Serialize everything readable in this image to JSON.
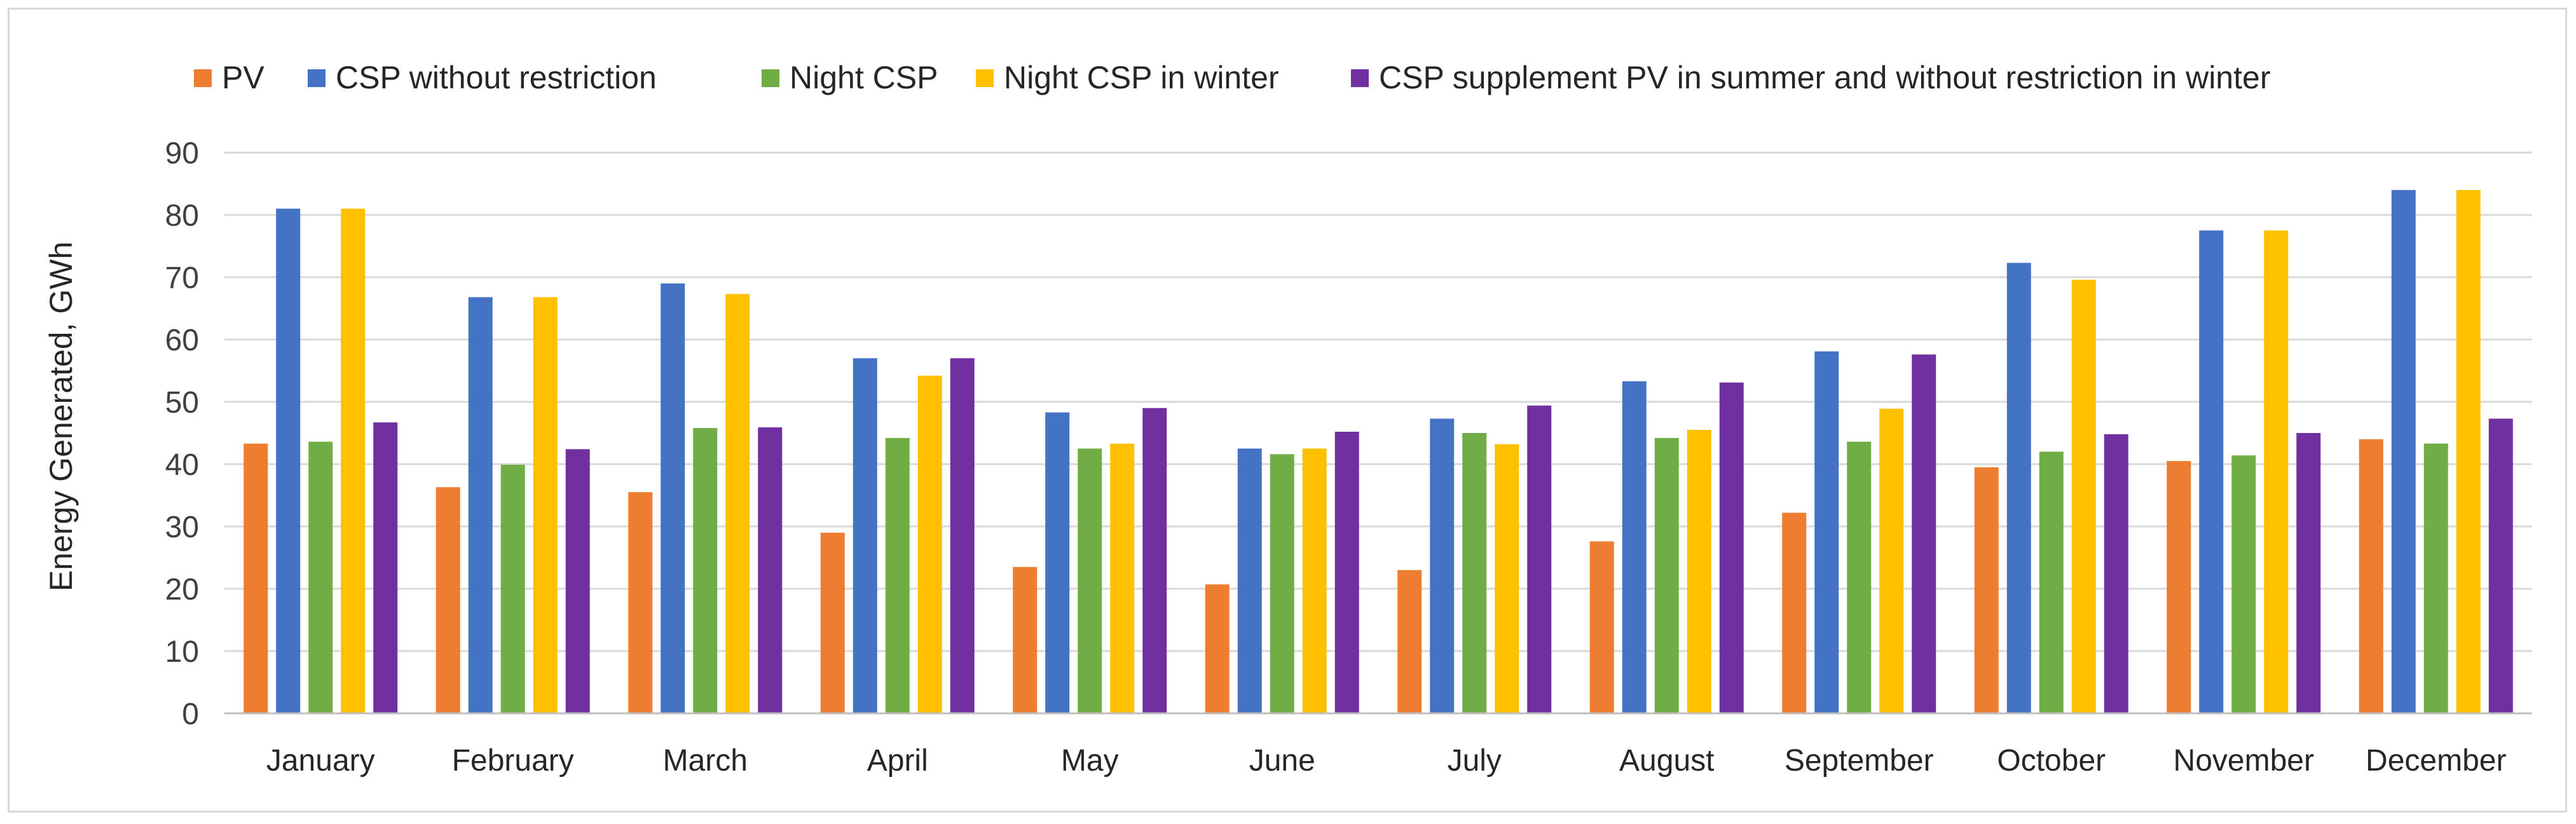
{
  "chart_data": {
    "type": "bar",
    "title": "",
    "xlabel": "",
    "ylabel": "Energy Generated, GWh",
    "ylim": [
      0,
      90
    ],
    "yticks": [
      0,
      10,
      20,
      30,
      40,
      50,
      60,
      70,
      80,
      90
    ],
    "grid": true,
    "legend_position": "top",
    "categories": [
      "January",
      "February",
      "March",
      "April",
      "May",
      "June",
      "July",
      "August",
      "September",
      "October",
      "November",
      "December"
    ],
    "series": [
      {
        "name": "PV",
        "color": "#ED7D31",
        "values": [
          43.3,
          36.3,
          35.5,
          29,
          23.5,
          20.7,
          23,
          27.6,
          32.2,
          39.5,
          40.5,
          44
        ]
      },
      {
        "name": "CSP without restriction",
        "color": "#4472C4",
        "values": [
          81,
          66.8,
          69,
          57,
          48.3,
          42.5,
          47.3,
          53.3,
          58.1,
          72.3,
          77.5,
          84
        ]
      },
      {
        "name": "Night CSP",
        "color": "#70AD47",
        "values": [
          43.6,
          39.9,
          45.8,
          44.2,
          42.5,
          41.6,
          45,
          44.2,
          43.6,
          42,
          41.4,
          43.3
        ]
      },
      {
        "name": "Night CSP in winter",
        "color": "#FFC000",
        "values": [
          81,
          66.8,
          67.3,
          54.2,
          43.3,
          42.5,
          43.2,
          45.5,
          48.9,
          69.6,
          77.5,
          84
        ]
      },
      {
        "name": "CSP supplement PV in summer and without restriction in winter",
        "color": "#7030A0",
        "values": [
          46.7,
          42.4,
          45.9,
          57,
          49,
          45.2,
          49.4,
          53.1,
          57.6,
          44.8,
          45,
          47.3
        ]
      }
    ]
  }
}
